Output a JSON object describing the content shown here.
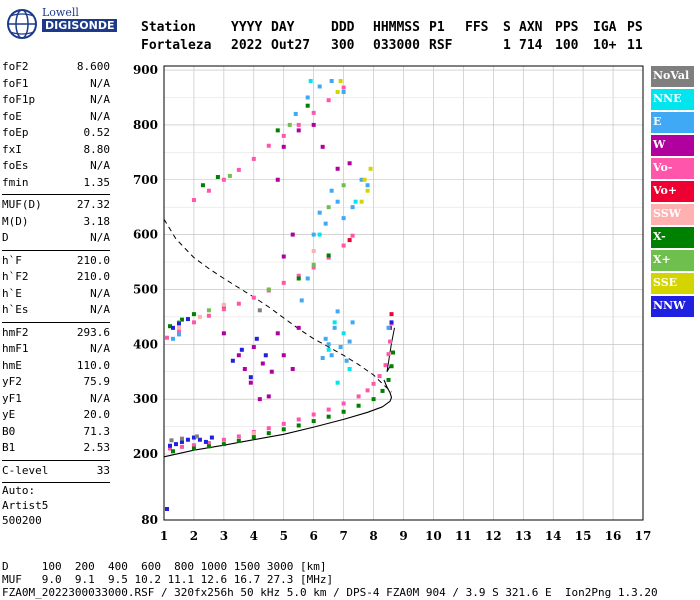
{
  "logo": {
    "line1": "Lowell",
    "line2": "DIGISONDE"
  },
  "header": {
    "labels": [
      "Station",
      "YYYY",
      "DAY",
      "DDD",
      "HHMMSS",
      "P1",
      "FFS",
      "S",
      "AXN",
      "PPS",
      "IGA",
      "PS"
    ],
    "values": [
      "Fortaleza",
      "2022",
      "Out27",
      "300",
      "033000",
      "RSF",
      "",
      "1",
      "714",
      "100",
      "10+",
      "11"
    ]
  },
  "params": [
    {
      "k": "foF2",
      "v": "8.600"
    },
    {
      "k": "foF1",
      "v": "N/A"
    },
    {
      "k": "foF1p",
      "v": "N/A"
    },
    {
      "k": "foE",
      "v": "N/A"
    },
    {
      "k": "foEp",
      "v": "0.52"
    },
    {
      "k": "fxI",
      "v": "8.80"
    },
    {
      "k": "foEs",
      "v": "N/A"
    },
    {
      "k": "fmin",
      "v": "1.35"
    },
    {
      "sep": true
    },
    {
      "k": "MUF(D)",
      "v": "27.32"
    },
    {
      "k": "M(D)",
      "v": "3.18"
    },
    {
      "k": "D",
      "v": "N/A"
    },
    {
      "sep": true
    },
    {
      "k": "h`F",
      "v": "210.0"
    },
    {
      "k": "h`F2",
      "v": "210.0"
    },
    {
      "k": "h`E",
      "v": "N/A"
    },
    {
      "k": "h`Es",
      "v": "N/A"
    },
    {
      "sep": true
    },
    {
      "k": "hmF2",
      "v": "293.6"
    },
    {
      "k": "hmF1",
      "v": "N/A"
    },
    {
      "k": "hmE",
      "v": "110.0"
    },
    {
      "k": "yF2",
      "v": "75.9"
    },
    {
      "k": "yF1",
      "v": "N/A"
    },
    {
      "k": "yE",
      "v": "20.0"
    },
    {
      "k": "B0",
      "v": "71.3"
    },
    {
      "k": "B1",
      "v": "2.53"
    },
    {
      "sep": true
    },
    {
      "k": "C-level",
      "v": "33"
    },
    {
      "sep": true
    }
  ],
  "auto": [
    "Auto:",
    "Artist5",
    "500200"
  ],
  "legend": [
    {
      "label": "NoVal",
      "color": "#7f7f7f"
    },
    {
      "label": "NNE",
      "color": "#00e5ee"
    },
    {
      "label": "E",
      "color": "#3fa9f5"
    },
    {
      "label": "W",
      "color": "#b0009e"
    },
    {
      "label": "Vo-",
      "color": "#ff55aa"
    },
    {
      "label": "Vo+",
      "color": "#ee0033"
    },
    {
      "label": "SSW",
      "color": "#ffb0b0"
    },
    {
      "label": "X-",
      "color": "#008000"
    },
    {
      "label": "X+",
      "color": "#6fbf4f"
    },
    {
      "label": "SSE",
      "color": "#d4d400"
    },
    {
      "label": "NNW",
      "color": "#2020e0"
    }
  ],
  "footer": {
    "row1": "D     100  200  400  600  800 1000 1500 3000 [km]",
    "row2": "MUF   9.0  9.1  9.5 10.2 11.1 12.6 16.7 27.3 [MHz]",
    "row3": "FZA0M_2022300033000.RSF / 320fx256h 50 kHz 5.0 km / DPS-4 FZA0M 904 / 3.9 S 321.6 E  Ion2Png 1.3.20"
  },
  "chart_data": {
    "type": "scatter",
    "xlim": [
      1,
      17
    ],
    "ylim": [
      80,
      900
    ],
    "x_ticks": [
      1,
      2,
      3,
      4,
      5,
      6,
      7,
      8,
      9,
      10,
      11,
      12,
      13,
      14,
      15,
      16,
      17
    ],
    "y_ticks": [
      80,
      200,
      300,
      400,
      500,
      600,
      700,
      800,
      900
    ],
    "grid": true,
    "series": [
      {
        "name": "Vo-",
        "color": "#ff55aa",
        "values": [
          [
            1.2,
            210
          ],
          [
            1.6,
            213
          ],
          [
            2.0,
            216
          ],
          [
            2.5,
            220
          ],
          [
            3.0,
            226
          ],
          [
            3.5,
            232
          ],
          [
            4.0,
            240
          ],
          [
            4.5,
            247
          ],
          [
            5.0,
            255
          ],
          [
            5.5,
            263
          ],
          [
            6.0,
            272
          ],
          [
            6.5,
            281
          ],
          [
            7.0,
            292
          ],
          [
            7.5,
            305
          ],
          [
            7.8,
            316
          ],
          [
            8.0,
            328
          ],
          [
            8.2,
            342
          ],
          [
            8.4,
            362
          ],
          [
            8.5,
            382
          ],
          [
            8.55,
            405
          ],
          [
            8.6,
            438
          ],
          [
            1.1,
            412
          ],
          [
            1.5,
            425
          ],
          [
            2.0,
            440
          ],
          [
            2.5,
            452
          ],
          [
            3.0,
            464
          ],
          [
            3.5,
            474
          ],
          [
            4.0,
            485
          ],
          [
            4.5,
            498
          ],
          [
            5.0,
            512
          ],
          [
            5.5,
            525
          ],
          [
            6.0,
            540
          ],
          [
            6.5,
            558
          ],
          [
            7.0,
            580
          ],
          [
            7.3,
            598
          ],
          [
            2.0,
            663
          ],
          [
            2.5,
            680
          ],
          [
            3.0,
            700
          ],
          [
            3.5,
            718
          ],
          [
            4.0,
            738
          ],
          [
            4.5,
            762
          ],
          [
            5.0,
            780
          ],
          [
            5.5,
            800
          ],
          [
            6.0,
            822
          ],
          [
            6.5,
            845
          ],
          [
            7.0,
            868
          ]
        ]
      },
      {
        "name": "Vo+",
        "color": "#ee0033",
        "values": [
          [
            8.55,
            430
          ],
          [
            8.6,
            455
          ],
          [
            7.2,
            590
          ]
        ]
      },
      {
        "name": "X-",
        "color": "#008000",
        "values": [
          [
            1.3,
            205
          ],
          [
            2.0,
            210
          ],
          [
            2.5,
            214
          ],
          [
            3.0,
            218
          ],
          [
            3.5,
            224
          ],
          [
            4.0,
            231
          ],
          [
            4.5,
            238
          ],
          [
            5.0,
            245
          ],
          [
            5.5,
            252
          ],
          [
            6.0,
            260
          ],
          [
            6.5,
            268
          ],
          [
            7.0,
            277
          ],
          [
            7.5,
            288
          ],
          [
            8.0,
            300
          ],
          [
            8.3,
            315
          ],
          [
            8.5,
            335
          ],
          [
            8.6,
            360
          ],
          [
            8.65,
            385
          ],
          [
            1.2,
            433
          ],
          [
            1.6,
            445
          ],
          [
            2.0,
            455
          ],
          [
            5.5,
            520
          ],
          [
            6.5,
            562
          ],
          [
            2.3,
            690
          ],
          [
            2.8,
            705
          ],
          [
            5.8,
            835
          ],
          [
            4.8,
            790
          ]
        ]
      },
      {
        "name": "X+",
        "color": "#6fbf4f",
        "values": [
          [
            1.5,
            440
          ],
          [
            2.5,
            462
          ],
          [
            4.5,
            500
          ],
          [
            6.0,
            545
          ],
          [
            6.5,
            650
          ],
          [
            7.0,
            690
          ],
          [
            3.2,
            707
          ],
          [
            5.2,
            800
          ]
        ]
      },
      {
        "name": "E",
        "color": "#3fa9f5",
        "values": [
          [
            6.5,
            400
          ],
          [
            6.6,
            380
          ],
          [
            6.7,
            430
          ],
          [
            6.8,
            460
          ],
          [
            6.4,
            410
          ],
          [
            6.9,
            395
          ],
          [
            7.1,
            370
          ],
          [
            7.2,
            405
          ],
          [
            7.3,
            440
          ],
          [
            6.3,
            375
          ],
          [
            5.6,
            480
          ],
          [
            5.8,
            520
          ],
          [
            6.0,
            600
          ],
          [
            6.2,
            640
          ],
          [
            6.4,
            620
          ],
          [
            6.6,
            680
          ],
          [
            6.8,
            660
          ],
          [
            7.0,
            630
          ],
          [
            7.3,
            650
          ],
          [
            7.6,
            700
          ],
          [
            7.8,
            690
          ],
          [
            5.4,
            820
          ],
          [
            5.8,
            850
          ],
          [
            6.2,
            870
          ],
          [
            6.6,
            880
          ],
          [
            7.0,
            860
          ],
          [
            8.5,
            430
          ],
          [
            1.3,
            410
          ],
          [
            1.5,
            418
          ]
        ]
      },
      {
        "name": "NNE",
        "color": "#00e5ee",
        "values": [
          [
            6.7,
            440
          ],
          [
            7.0,
            420
          ],
          [
            6.5,
            390
          ],
          [
            7.4,
            660
          ],
          [
            6.2,
            600
          ],
          [
            5.9,
            880
          ],
          [
            7.2,
            355
          ],
          [
            6.8,
            330
          ]
        ]
      },
      {
        "name": "W",
        "color": "#b0009e",
        "values": [
          [
            3.5,
            380
          ],
          [
            3.7,
            355
          ],
          [
            3.9,
            330
          ],
          [
            4.0,
            395
          ],
          [
            4.3,
            365
          ],
          [
            4.6,
            350
          ],
          [
            4.8,
            420
          ],
          [
            5.0,
            380
          ],
          [
            5.3,
            355
          ],
          [
            3.0,
            420
          ],
          [
            5.5,
            430
          ],
          [
            4.2,
            300
          ],
          [
            4.5,
            305
          ],
          [
            5.0,
            560
          ],
          [
            5.3,
            600
          ],
          [
            4.8,
            700
          ],
          [
            5.0,
            760
          ],
          [
            5.5,
            790
          ],
          [
            6.0,
            800
          ],
          [
            6.3,
            760
          ],
          [
            6.8,
            720
          ],
          [
            7.2,
            730
          ]
        ]
      },
      {
        "name": "SSE",
        "color": "#d4d400",
        "values": [
          [
            7.6,
            660
          ],
          [
            7.8,
            680
          ],
          [
            7.9,
            720
          ],
          [
            7.7,
            700
          ],
          [
            6.8,
            860
          ],
          [
            6.9,
            880
          ]
        ]
      },
      {
        "name": "NNW",
        "color": "#2020e0",
        "values": [
          [
            1.2,
            215
          ],
          [
            1.4,
            218
          ],
          [
            1.6,
            222
          ],
          [
            1.8,
            226
          ],
          [
            2.0,
            230
          ],
          [
            2.2,
            226
          ],
          [
            2.4,
            222
          ],
          [
            2.6,
            230
          ],
          [
            1.3,
            430
          ],
          [
            1.5,
            438
          ],
          [
            1.8,
            446
          ],
          [
            3.3,
            370
          ],
          [
            3.6,
            390
          ],
          [
            4.1,
            410
          ],
          [
            4.4,
            380
          ],
          [
            3.9,
            340
          ],
          [
            8.6,
            440
          ],
          [
            1.1,
            100
          ]
        ]
      },
      {
        "name": "NoVal",
        "color": "#7f7f7f",
        "values": [
          [
            1.25,
            225
          ],
          [
            1.6,
            228
          ],
          [
            2.1,
            232
          ],
          [
            4.2,
            462
          ],
          [
            3.0,
            470
          ]
        ]
      },
      {
        "name": "SSW",
        "color": "#ffb0b0",
        "values": [
          [
            1.5,
            430
          ],
          [
            2.2,
            450
          ],
          [
            3.0,
            472
          ],
          [
            6.0,
            570
          ],
          [
            4.0,
            238
          ]
        ]
      }
    ],
    "profile_curve": [
      [
        1.0,
        195
      ],
      [
        2.0,
        207
      ],
      [
        3.0,
        216
      ],
      [
        4.0,
        226
      ],
      [
        5.0,
        236
      ],
      [
        6.0,
        249
      ],
      [
        7.0,
        263
      ],
      [
        7.8,
        276
      ],
      [
        8.3,
        286
      ],
      [
        8.55,
        296
      ],
      [
        8.6,
        303
      ],
      [
        8.55,
        312
      ],
      [
        8.45,
        322
      ],
      [
        8.35,
        335
      ]
    ],
    "dashed_curve": [
      [
        1.0,
        628
      ],
      [
        1.4,
        592
      ],
      [
        2.0,
        558
      ],
      [
        2.5,
        538
      ],
      [
        3.0,
        520
      ],
      [
        3.5,
        503
      ],
      [
        4.0,
        486
      ],
      [
        4.5,
        468
      ],
      [
        5.0,
        448
      ],
      [
        5.5,
        428
      ],
      [
        6.0,
        410
      ],
      [
        6.5,
        395
      ],
      [
        7.0,
        380
      ],
      [
        7.5,
        363
      ],
      [
        8.0,
        344
      ],
      [
        8.3,
        328
      ],
      [
        8.6,
        313
      ]
    ],
    "extra_line": [
      [
        8.55,
        360
      ],
      [
        8.45,
        350
      ],
      [
        8.6,
        402
      ],
      [
        8.7,
        430
      ]
    ]
  }
}
